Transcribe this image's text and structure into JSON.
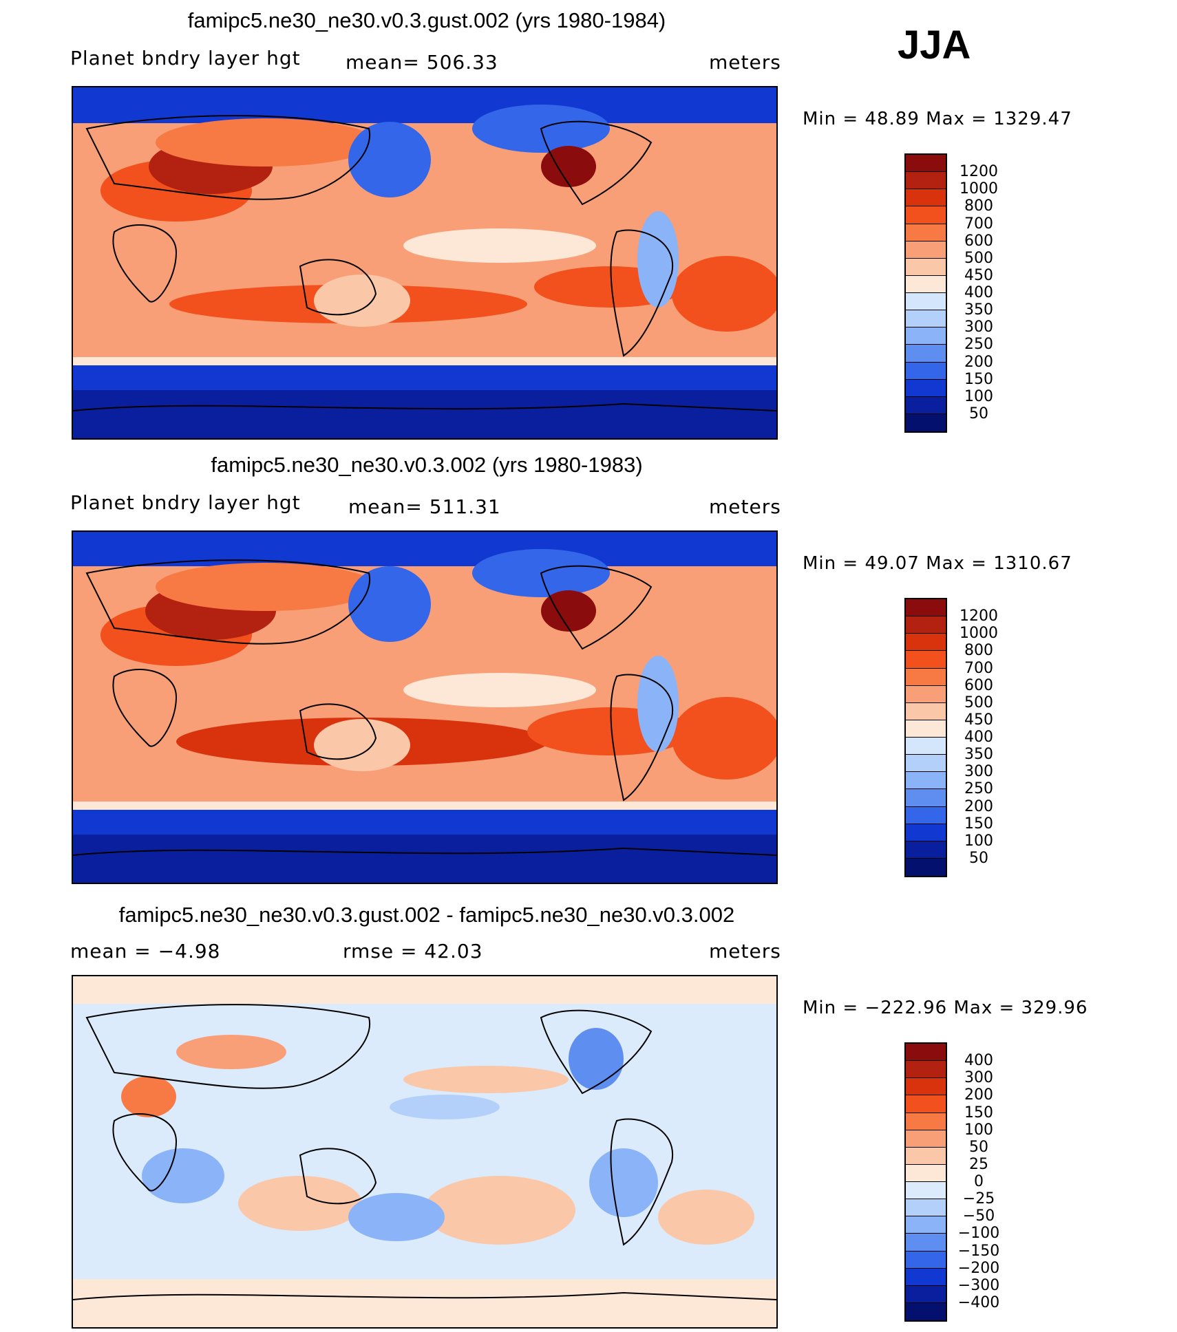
{
  "season": "JJA",
  "panels": [
    {
      "title": "famipc5.ne30_ne30.v0.3.gust.002 (yrs 1980-1984)",
      "left_label": "Planet bndry layer hgt",
      "center_label": "mean= 506.33",
      "right_label": "meters",
      "minmax": "Min =   48.89  Max  =  1329.47",
      "colorbar": [
        "1200",
        "1000",
        "800",
        "700",
        "600",
        "500",
        "450",
        "400",
        "350",
        "300",
        "250",
        "200",
        "150",
        "100",
        "50"
      ]
    },
    {
      "title": "famipc5.ne30_ne30.v0.3.002 (yrs 1980-1983)",
      "left_label": "Planet bndry layer hgt",
      "center_label": "mean= 511.31",
      "right_label": "meters",
      "minmax": "Min =   49.07  Max  =  1310.67",
      "colorbar": [
        "1200",
        "1000",
        "800",
        "700",
        "600",
        "500",
        "450",
        "400",
        "350",
        "300",
        "250",
        "200",
        "150",
        "100",
        "50"
      ]
    },
    {
      "title": "famipc5.ne30_ne30.v0.3.gust.002 - famipc5.ne30_ne30.v0.3.002",
      "left_label": "mean =   −4.98",
      "center_label": "rmse =   42.03",
      "right_label": "meters",
      "minmax": "Min = −222.96  Max  =  329.96",
      "colorbar": [
        "400",
        "300",
        "200",
        "150",
        "100",
        "50",
        "25",
        "0",
        "−25",
        "−50",
        "−100",
        "−150",
        "−200",
        "−300",
        "−400"
      ]
    }
  ],
  "palettes": {
    "abs": [
      "#8a0c0c",
      "#b32110",
      "#d9330e",
      "#f2501c",
      "#f77a45",
      "#f99f77",
      "#fbc7a9",
      "#fde7d6",
      "#d4e6fb",
      "#b3d0fb",
      "#8bb3f7",
      "#5f8ef1",
      "#3466ea",
      "#1238d2",
      "#0a1f9e",
      "#04106e"
    ],
    "diff": [
      "#8a0c0c",
      "#b32110",
      "#d9330e",
      "#f2501c",
      "#f77a45",
      "#f99f77",
      "#fbc7a9",
      "#fde7d6",
      "#dcebfb",
      "#b3d0fb",
      "#8bb3f7",
      "#5f8ef1",
      "#3466ea",
      "#1238d2",
      "#0a1f9e",
      "#04106e"
    ]
  },
  "chart_data": [
    {
      "type": "heatmap",
      "title": "famipc5.ne30_ne30.v0.3.gust.002 (yrs 1980-1984)",
      "variable": "Planet bndry layer hgt",
      "units": "meters",
      "season": "JJA",
      "mean": 506.33,
      "min": 48.89,
      "max": 1329.47,
      "levels": [
        50,
        100,
        150,
        200,
        250,
        300,
        350,
        400,
        450,
        500,
        600,
        700,
        800,
        1000,
        1200
      ]
    },
    {
      "type": "heatmap",
      "title": "famipc5.ne30_ne30.v0.3.002 (yrs 1980-1983)",
      "variable": "Planet bndry layer hgt",
      "units": "meters",
      "season": "JJA",
      "mean": 511.31,
      "min": 49.07,
      "max": 1310.67,
      "levels": [
        50,
        100,
        150,
        200,
        250,
        300,
        350,
        400,
        450,
        500,
        600,
        700,
        800,
        1000,
        1200
      ]
    },
    {
      "type": "heatmap",
      "title": "famipc5.ne30_ne30.v0.3.gust.002 - famipc5.ne30_ne30.v0.3.002",
      "units": "meters",
      "season": "JJA",
      "mean": -4.98,
      "rmse": 42.03,
      "min": -222.96,
      "max": 329.96,
      "levels": [
        -400,
        -300,
        -200,
        -150,
        -100,
        -50,
        -25,
        0,
        25,
        50,
        100,
        150,
        200,
        300,
        400
      ]
    }
  ]
}
